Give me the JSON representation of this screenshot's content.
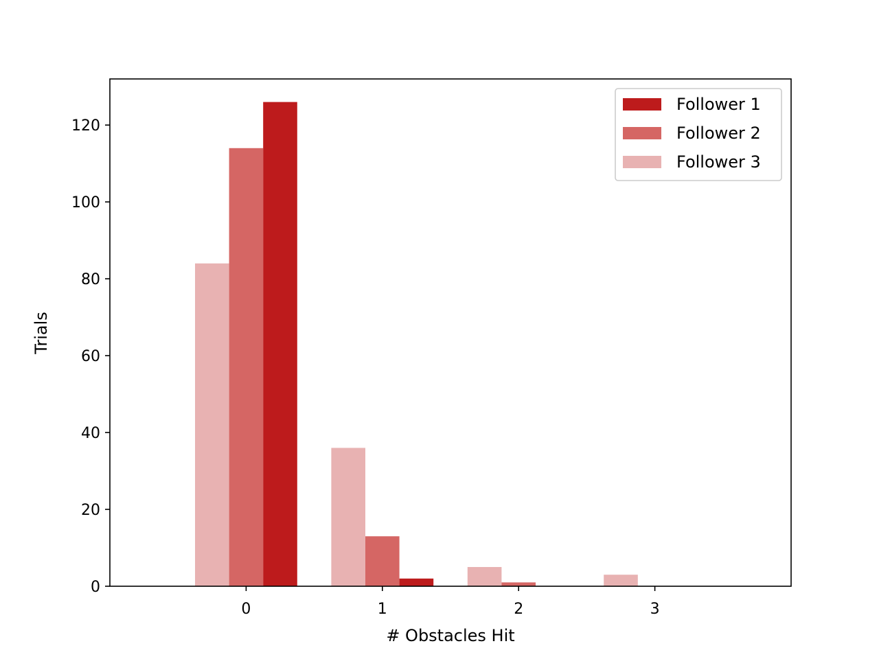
{
  "chart_data": {
    "type": "bar",
    "categories": [
      "0",
      "1",
      "2",
      "3"
    ],
    "x": [
      0,
      1,
      2,
      3
    ],
    "series": [
      {
        "name": "Follower 3",
        "values": [
          84,
          36,
          5,
          3
        ],
        "color": "#e8b2b2"
      },
      {
        "name": "Follower 2",
        "values": [
          114,
          13,
          1,
          0
        ],
        "color": "#d56664"
      },
      {
        "name": "Follower 1",
        "values": [
          126,
          2,
          0,
          0
        ],
        "color": "#bd1b1c"
      }
    ],
    "legend_order": [
      "Follower 1",
      "Follower 2",
      "Follower 3"
    ],
    "xlabel": "# Obstacles Hit",
    "ylabel": "Trials",
    "xlim": [
      -1,
      4
    ],
    "ylim": [
      0,
      132
    ],
    "yticks": [
      0,
      20,
      40,
      60,
      80,
      100,
      120
    ],
    "xticks": [
      0,
      1,
      2,
      3
    ],
    "grid": false,
    "legend_position": "top-right"
  }
}
